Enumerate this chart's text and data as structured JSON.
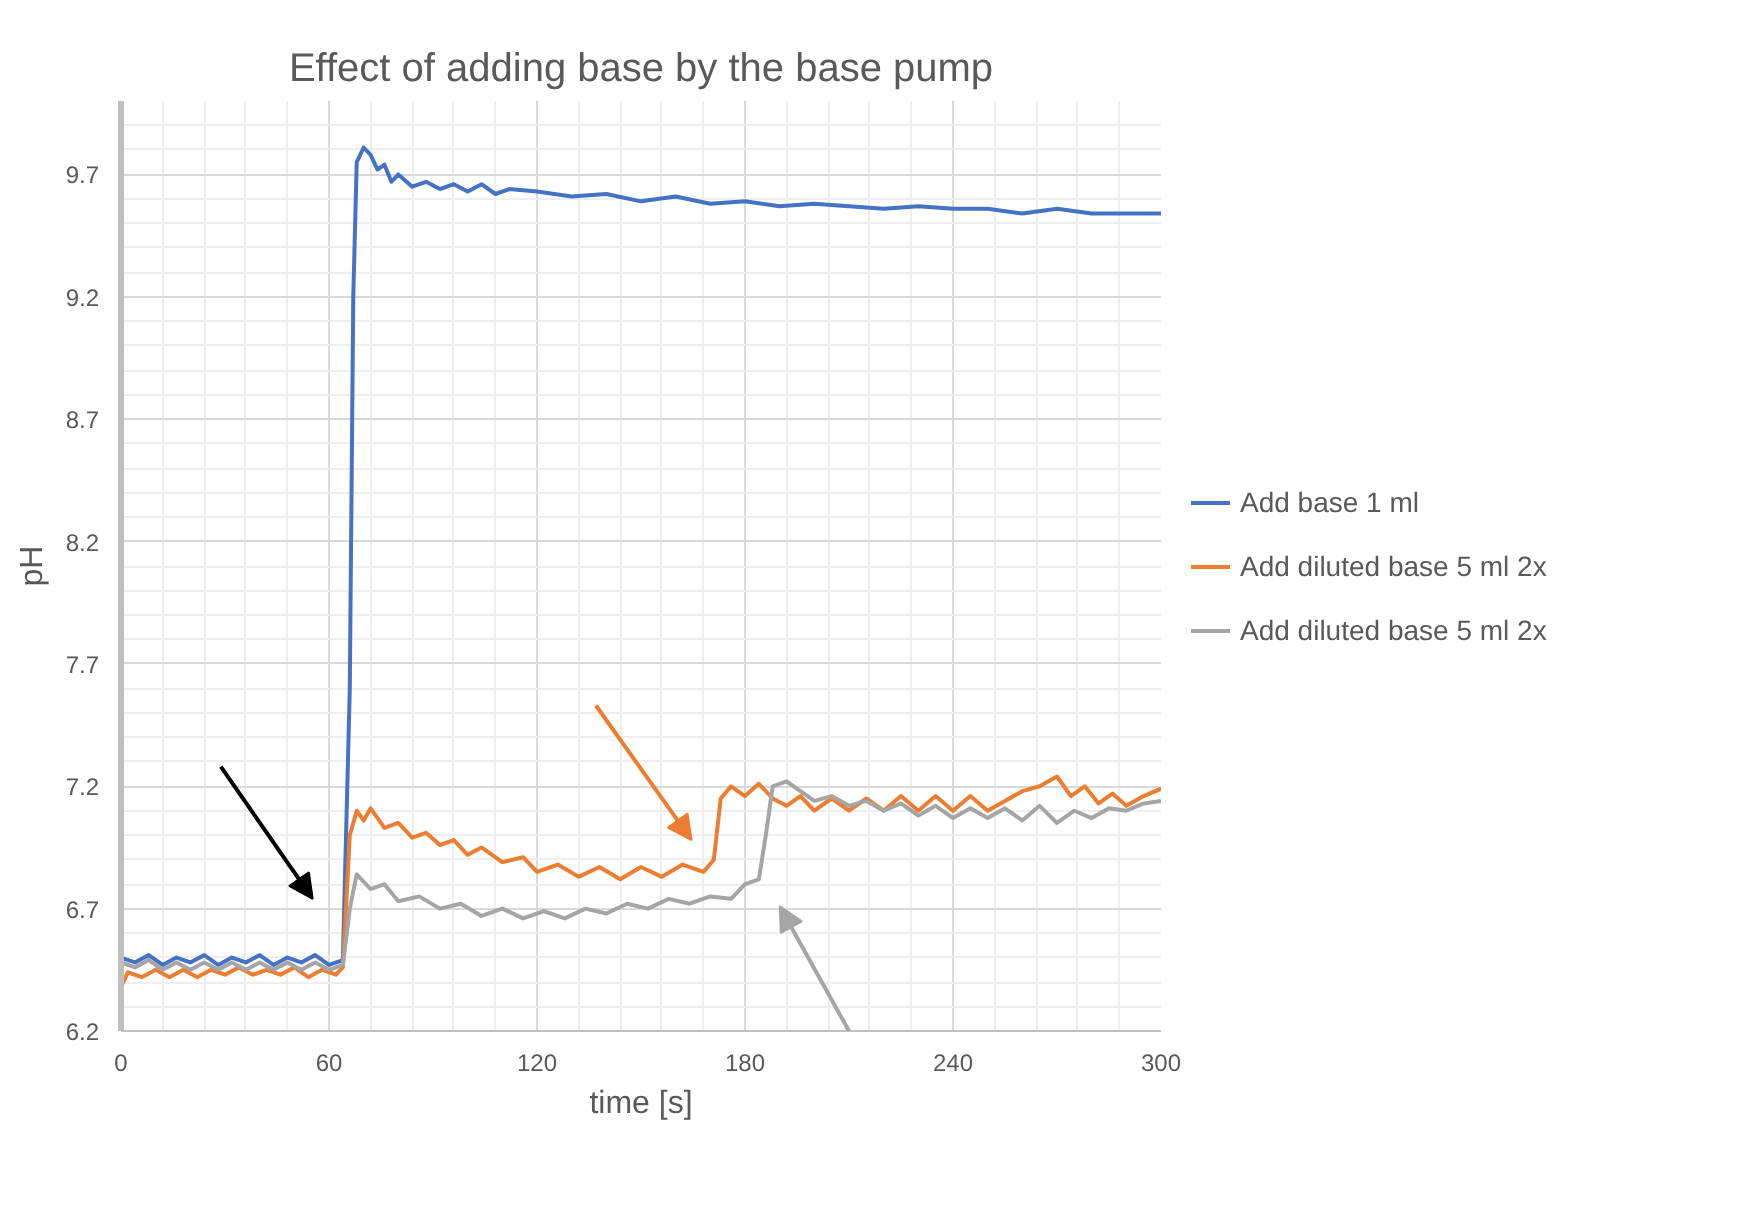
{
  "chart_data": {
    "type": "line",
    "title": "Effect of adding base by the base pump",
    "xlabel": "time [s]",
    "ylabel": "pH",
    "xlim": [
      0,
      300
    ],
    "xticks": [
      0,
      60,
      120,
      180,
      240,
      300
    ],
    "ylim": [
      6.2,
      10.0
    ],
    "yticks": [
      6.2,
      6.7,
      7.2,
      7.7,
      8.2,
      8.7,
      9.2,
      9.7
    ],
    "grid": true,
    "legend": "right",
    "series": [
      {
        "name": "Add base 1 ml",
        "color": "#4472c4",
        "x": [
          0,
          4,
          8,
          12,
          16,
          20,
          24,
          28,
          32,
          36,
          40,
          44,
          48,
          52,
          56,
          60,
          64,
          66,
          67,
          68,
          70,
          72,
          74,
          76,
          78,
          80,
          84,
          88,
          92,
          96,
          100,
          104,
          108,
          112,
          120,
          130,
          140,
          150,
          160,
          170,
          180,
          190,
          200,
          210,
          220,
          230,
          240,
          250,
          260,
          270,
          280,
          290,
          300
        ],
        "values": [
          6.5,
          6.48,
          6.51,
          6.47,
          6.5,
          6.48,
          6.51,
          6.47,
          6.5,
          6.48,
          6.51,
          6.47,
          6.5,
          6.48,
          6.51,
          6.47,
          6.49,
          7.6,
          9.2,
          9.75,
          9.81,
          9.78,
          9.72,
          9.74,
          9.67,
          9.7,
          9.65,
          9.67,
          9.64,
          9.66,
          9.63,
          9.66,
          9.62,
          9.64,
          9.63,
          9.61,
          9.62,
          9.59,
          9.61,
          9.58,
          9.59,
          9.57,
          9.58,
          9.57,
          9.56,
          9.57,
          9.56,
          9.56,
          9.54,
          9.56,
          9.54,
          9.54,
          9.54
        ]
      },
      {
        "name": "Add diluted base 5 ml 2x",
        "color": "#ed7d31",
        "x": [
          0,
          2,
          6,
          10,
          14,
          18,
          22,
          26,
          30,
          34,
          38,
          42,
          46,
          50,
          54,
          58,
          62,
          64,
          66,
          68,
          70,
          72,
          76,
          80,
          84,
          88,
          92,
          96,
          100,
          104,
          110,
          116,
          120,
          126,
          132,
          138,
          144,
          150,
          156,
          162,
          168,
          171,
          173,
          176,
          180,
          184,
          188,
          192,
          196,
          200,
          205,
          210,
          215,
          220,
          225,
          230,
          235,
          240,
          245,
          250,
          255,
          260,
          265,
          270,
          274,
          278,
          282,
          286,
          290,
          295,
          300
        ],
        "values": [
          6.38,
          6.44,
          6.42,
          6.45,
          6.42,
          6.45,
          6.42,
          6.45,
          6.43,
          6.46,
          6.43,
          6.45,
          6.43,
          6.46,
          6.42,
          6.45,
          6.43,
          6.46,
          7.0,
          7.1,
          7.06,
          7.11,
          7.03,
          7.05,
          6.99,
          7.01,
          6.96,
          6.98,
          6.92,
          6.95,
          6.89,
          6.91,
          6.85,
          6.88,
          6.83,
          6.87,
          6.82,
          6.87,
          6.83,
          6.88,
          6.85,
          6.9,
          7.15,
          7.2,
          7.16,
          7.21,
          7.15,
          7.12,
          7.16,
          7.1,
          7.15,
          7.1,
          7.15,
          7.1,
          7.16,
          7.1,
          7.16,
          7.1,
          7.16,
          7.1,
          7.14,
          7.18,
          7.2,
          7.24,
          7.16,
          7.2,
          7.13,
          7.17,
          7.12,
          7.16,
          7.19
        ]
      },
      {
        "name": "Add diluted base 5 ml 2x",
        "color": "#a5a5a5",
        "x": [
          0,
          4,
          8,
          12,
          16,
          20,
          24,
          28,
          32,
          36,
          40,
          44,
          48,
          52,
          56,
          60,
          64,
          66,
          68,
          72,
          76,
          80,
          86,
          92,
          98,
          104,
          110,
          116,
          122,
          128,
          134,
          140,
          146,
          152,
          158,
          164,
          170,
          176,
          180,
          184,
          186,
          188,
          192,
          196,
          200,
          205,
          210,
          215,
          220,
          225,
          230,
          235,
          240,
          245,
          250,
          255,
          260,
          265,
          270,
          275,
          280,
          285,
          290,
          295,
          300
        ],
        "values": [
          6.48,
          6.46,
          6.49,
          6.45,
          6.48,
          6.45,
          6.48,
          6.45,
          6.48,
          6.45,
          6.48,
          6.45,
          6.48,
          6.45,
          6.48,
          6.45,
          6.47,
          6.7,
          6.84,
          6.78,
          6.8,
          6.73,
          6.75,
          6.7,
          6.72,
          6.67,
          6.7,
          6.66,
          6.69,
          6.66,
          6.7,
          6.68,
          6.72,
          6.7,
          6.74,
          6.72,
          6.75,
          6.74,
          6.8,
          6.82,
          7.0,
          7.2,
          7.22,
          7.18,
          7.14,
          7.16,
          7.12,
          7.14,
          7.1,
          7.13,
          7.08,
          7.12,
          7.07,
          7.11,
          7.07,
          7.11,
          7.06,
          7.12,
          7.05,
          7.1,
          7.07,
          7.11,
          7.1,
          7.13,
          7.14
        ]
      }
    ]
  }
}
